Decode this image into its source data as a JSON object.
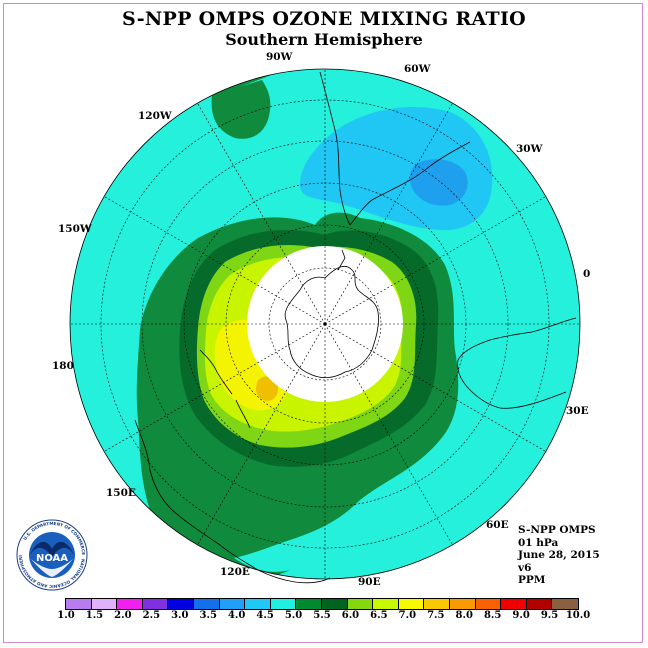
{
  "title": "S-NPP OMPS OZONE MIXING RATIO",
  "subtitle": "Southern Hemisphere",
  "longitude_labels": {
    "w90": "90W",
    "w60": "60W",
    "w30": "30W",
    "zero": "0",
    "e30": "30E",
    "e60": "60E",
    "e90": "90E",
    "e120": "120E",
    "e150": "150E",
    "d180": "180",
    "w150": "150W",
    "w120": "120W"
  },
  "info": {
    "instrument": "S-NPP OMPS",
    "level": "01 hPa",
    "date": "June 28, 2015",
    "version": "v6",
    "units": "PPM"
  },
  "logo": {
    "text": "NOAA",
    "ring_text": "NATIONAL OCEANIC AND ATMOSPHERIC ADMINISTRATION",
    "ring_text_bottom": "U.S. DEPARTMENT OF COMMERCE"
  },
  "colorbar": {
    "colors": [
      "#b87cf0",
      "#e0b0f8",
      "#f020f0",
      "#8030e0",
      "#0000e0",
      "#1470e8",
      "#20a0f8",
      "#20c8f8",
      "#20f0e0",
      "#008a30",
      "#006420",
      "#84d810",
      "#c8f800",
      "#f8f800",
      "#f8c800",
      "#f89a00",
      "#f86000",
      "#f00000",
      "#b00000",
      "#8a6040"
    ],
    "ticks": [
      "1.0",
      "1.5",
      "2.0",
      "2.5",
      "3.0",
      "3.5",
      "4.0",
      "4.5",
      "5.0",
      "5.5",
      "6.0",
      "6.5",
      "7.0",
      "7.5",
      "8.0",
      "8.5",
      "9.0",
      "9.5",
      "10.0"
    ]
  },
  "fill_colors": {
    "background": "#24f0dc",
    "band_5_5": "#108a3c",
    "band_6_0": "#066b2a",
    "band_6_5": "#7ed614",
    "band_7_0": "#c8f400",
    "band_7_5": "#f4f400",
    "band_8_0": "#f0c000",
    "low_4_5": "#20c6f4",
    "low_4_0": "#1ea0ee",
    "nodata": "#ffffff"
  }
}
